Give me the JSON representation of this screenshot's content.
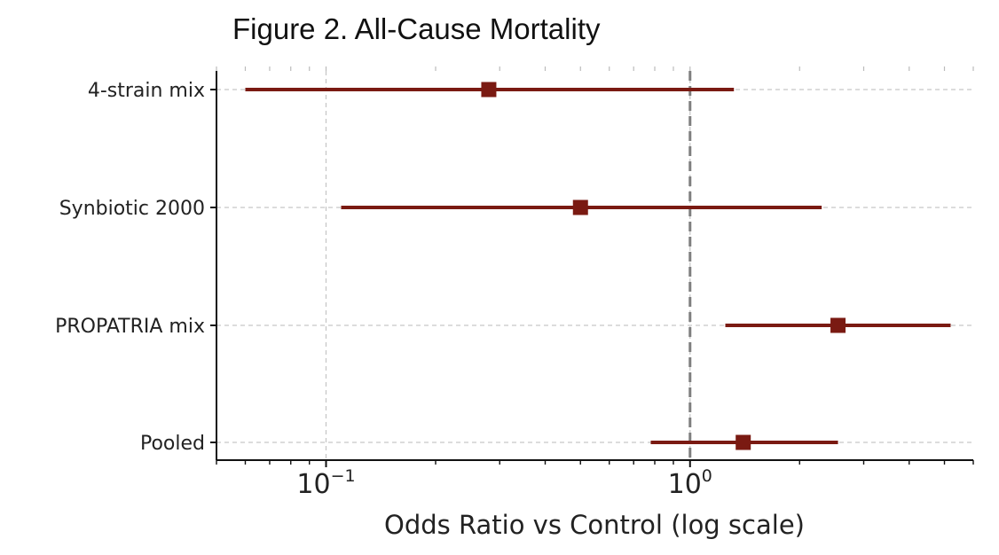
{
  "chart_data": {
    "type": "forest",
    "title": "Figure 2. All-Cause Mortality",
    "xlabel": "Odds Ratio vs Control (log scale)",
    "ylabel": "",
    "xscale": "log",
    "xlim": [
      0.05,
      6.0
    ],
    "x_ticks": [
      {
        "value": 0.1,
        "base": "10",
        "exponent": "−1"
      },
      {
        "value": 1.0,
        "base": "10",
        "exponent": "0"
      }
    ],
    "reference_line": 1.0,
    "grid": true,
    "categories": [
      "4-strain mix",
      "Synbiotic 2000",
      "PROPATRIA mix",
      "Pooled"
    ],
    "estimates": [
      0.28,
      0.5,
      2.55,
      1.4
    ],
    "ci_lower": [
      0.06,
      0.11,
      1.25,
      0.78
    ],
    "ci_upper": [
      1.32,
      2.3,
      5.2,
      2.55
    ],
    "color": "#7a1a12"
  }
}
